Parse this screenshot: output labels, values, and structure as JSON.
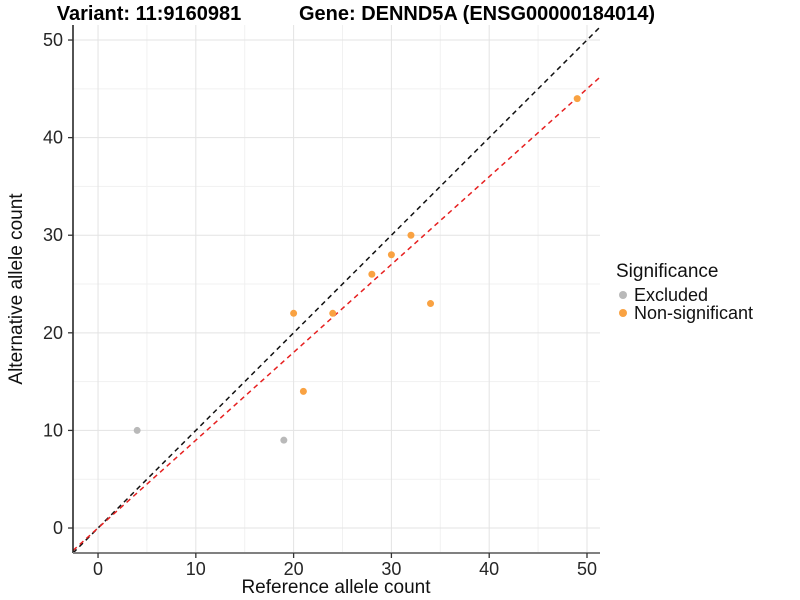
{
  "chart_data": {
    "type": "scatter",
    "title_left": "Variant: 11:9160981",
    "title_right": "Gene: DENND5A (ENSG00000184014)",
    "xlabel": "Reference allele count",
    "ylabel": "Alternative allele count",
    "xlim": [
      -2.56,
      51.33
    ],
    "ylim": [
      -2.56,
      51.54
    ],
    "x_ticks": [
      0,
      10,
      20,
      30,
      40,
      50
    ],
    "y_ticks": [
      0,
      10,
      20,
      30,
      40,
      50
    ],
    "x_minor_ticks": [
      5,
      15,
      25,
      35,
      45
    ],
    "y_minor_ticks": [
      5,
      15,
      25,
      35,
      45
    ],
    "grid": true,
    "legend": {
      "title": "Significance",
      "position": "right",
      "items": [
        {
          "label": "Excluded",
          "color": "#B9B9B9"
        },
        {
          "label": "Non-significant",
          "color": "#F9A242"
        }
      ]
    },
    "series": [
      {
        "name": "Excluded",
        "color": "#B9B9B9",
        "points": [
          [
            4,
            10
          ],
          [
            19,
            9
          ]
        ]
      },
      {
        "name": "Non-significant",
        "color": "#F9A242",
        "points": [
          [
            20,
            22
          ],
          [
            21,
            14
          ],
          [
            24,
            22
          ],
          [
            28,
            26
          ],
          [
            30,
            28
          ],
          [
            32,
            30
          ],
          [
            34,
            23
          ],
          [
            49,
            44
          ]
        ]
      }
    ],
    "lines": [
      {
        "name": "identity-line",
        "color": "#111111",
        "slope": 1,
        "intercept": 0
      },
      {
        "name": "expected-ratio-line",
        "color": "#E62020",
        "slope": 0.9,
        "intercept": 0
      }
    ],
    "colors": {
      "major_grid": "#E3E3E3",
      "minor_grid": "#F1F1F1",
      "y_axis_line": "#1A1A1A",
      "x_axis_line": "#808080",
      "tick": "#333333"
    }
  }
}
